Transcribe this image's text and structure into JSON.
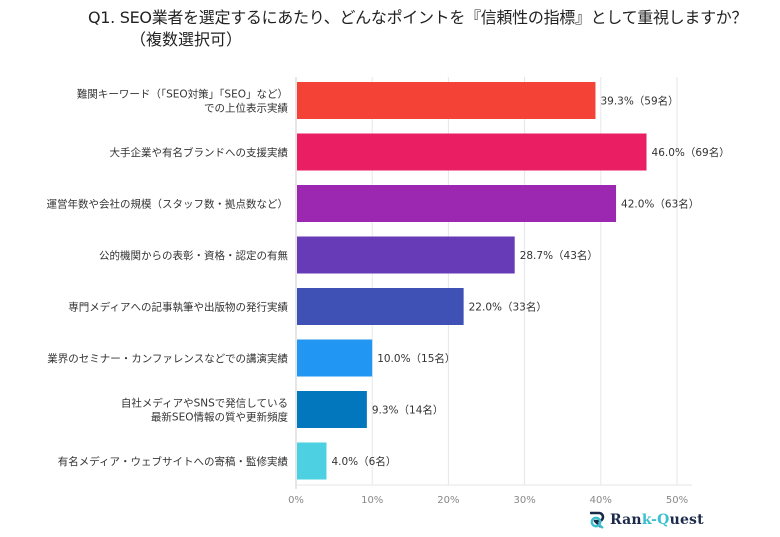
{
  "chart_data": {
    "type": "bar",
    "orientation": "horizontal",
    "title": "Q1. SEO業者を選定するにあたり、どんなポイントを『信頼性の指標』として重視しますか？",
    "subtitle": "（複数選択可）",
    "categories": [
      [
        "難関キーワード（「SEO対策」「SEO」など）",
        "での上位表示実績"
      ],
      [
        "大手企業や有名ブランドへの支援実績"
      ],
      [
        "運営年数や会社の規模（スタッフ数・拠点数など）"
      ],
      [
        "公的機関からの表彰・資格・認定の有無"
      ],
      [
        "専門メディアへの記事執筆や出版物の発行実績"
      ],
      [
        "業界のセミナー・カンファレンスなどでの講演実績"
      ],
      [
        "自社メディアやSNSで発信している",
        "最新SEO情報の質や更新頻度"
      ],
      [
        "有名メディア・ウェブサイトへの寄稿・監修実績"
      ]
    ],
    "values": [
      39.3,
      46.0,
      42.0,
      28.7,
      22.0,
      10.0,
      9.3,
      4.0
    ],
    "data_labels": [
      "39.3%（59名）",
      "46.0%（69名）",
      "42.0%（63名）",
      "28.7%（43名）",
      "22.0%（33名）",
      "10.0%（15名）",
      "9.3%（14名）",
      "4.0%（6名）"
    ],
    "colors": [
      "#F44336",
      "#E91E63",
      "#9C27B0",
      "#673AB7",
      "#3F51B5",
      "#2196F3",
      "#0277BD",
      "#4DD0E1"
    ],
    "xlim": [
      0,
      50
    ],
    "xticks": [
      "0%",
      "10%",
      "20%",
      "30%",
      "40%",
      "50%"
    ],
    "xtick_values": [
      0,
      10,
      20,
      30,
      40,
      50
    ],
    "xlabel": "",
    "ylabel": "",
    "grid": true
  },
  "brand": {
    "name_part1": "Ran",
    "name_part2": "k-",
    "name_part3": "Q",
    "name_part4": "uest",
    "full": "Rank-Quest"
  }
}
